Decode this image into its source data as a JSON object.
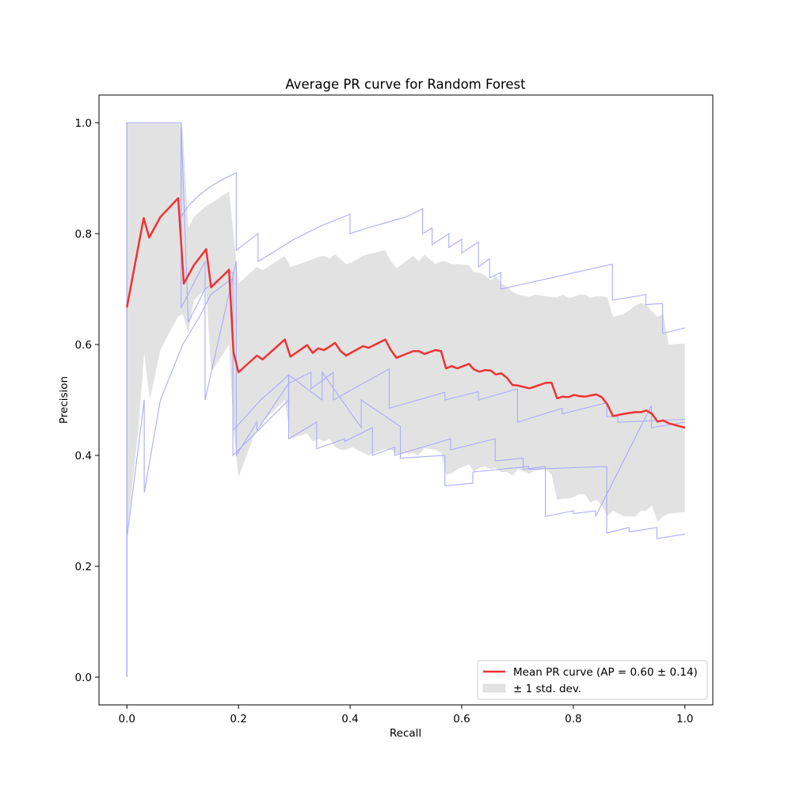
{
  "chart_data": {
    "type": "line",
    "title": "Average PR curve for Random Forest",
    "xlabel": "Recall",
    "ylabel": "Precision",
    "xlim": [
      -0.05,
      1.05
    ],
    "ylim": [
      -0.05,
      1.05
    ],
    "xticks": [
      0.0,
      0.2,
      0.4,
      0.6,
      0.8,
      1.0
    ],
    "xtick_labels": [
      "0.0",
      "0.2",
      "0.4",
      "0.6",
      "0.8",
      "1.0"
    ],
    "yticks": [
      0.0,
      0.2,
      0.4,
      0.6,
      0.8,
      1.0
    ],
    "ytick_labels": [
      "0.0",
      "0.2",
      "0.4",
      "0.6",
      "0.8",
      "1.0"
    ],
    "grid": false,
    "legend_position": "lower-right",
    "legend": {
      "mean_label": "Mean PR curve (AP = 0.60 ± 0.14)",
      "band_label": "± 1 std. dev."
    },
    "colors": {
      "mean": "#f03232",
      "folds": "#aaaaff",
      "band": "#e2e2e2"
    },
    "mean_curve": {
      "x": [
        0.0,
        0.03,
        0.04,
        0.06,
        0.075,
        0.092,
        0.102,
        0.12,
        0.142,
        0.151,
        0.183,
        0.191,
        0.2,
        0.233,
        0.243,
        0.283,
        0.293,
        0.323,
        0.333,
        0.343,
        0.353,
        0.363,
        0.373,
        0.383,
        0.393,
        0.403,
        0.423,
        0.433,
        0.463,
        0.473,
        0.483,
        0.513,
        0.523,
        0.533,
        0.553,
        0.563,
        0.572,
        0.582,
        0.592,
        0.613,
        0.622,
        0.632,
        0.642,
        0.652,
        0.661,
        0.671,
        0.681,
        0.691,
        0.701,
        0.721,
        0.731,
        0.751,
        0.761,
        0.771,
        0.781,
        0.791,
        0.801,
        0.811,
        0.821,
        0.831,
        0.841,
        0.851,
        0.861,
        0.871,
        0.891,
        0.911,
        0.921,
        0.931,
        0.941,
        0.951,
        0.961,
        0.971,
        1.0
      ],
      "y": [
        0.667,
        0.828,
        0.793,
        0.83,
        0.846,
        0.864,
        0.71,
        0.743,
        0.772,
        0.703,
        0.735,
        0.586,
        0.55,
        0.58,
        0.573,
        0.609,
        0.578,
        0.599,
        0.585,
        0.593,
        0.59,
        0.596,
        0.603,
        0.588,
        0.58,
        0.586,
        0.597,
        0.594,
        0.609,
        0.59,
        0.576,
        0.588,
        0.588,
        0.583,
        0.59,
        0.588,
        0.557,
        0.561,
        0.557,
        0.565,
        0.555,
        0.551,
        0.554,
        0.553,
        0.546,
        0.548,
        0.54,
        0.527,
        0.526,
        0.521,
        0.524,
        0.531,
        0.531,
        0.503,
        0.506,
        0.505,
        0.509,
        0.507,
        0.506,
        0.508,
        0.51,
        0.505,
        0.492,
        0.471,
        0.475,
        0.478,
        0.478,
        0.481,
        0.475,
        0.461,
        0.463,
        0.458,
        0.45
      ]
    },
    "std_band": {
      "x": [
        0.0,
        0.0,
        0.01,
        0.021,
        0.031,
        0.041,
        0.06,
        0.075,
        0.092,
        0.1,
        0.11,
        0.12,
        0.142,
        0.151,
        0.183,
        0.191,
        0.2,
        0.233,
        0.243,
        0.283,
        0.293,
        0.323,
        0.333,
        0.343,
        0.353,
        0.363,
        0.373,
        0.383,
        0.393,
        0.403,
        0.423,
        0.433,
        0.463,
        0.473,
        0.483,
        0.513,
        0.523,
        0.533,
        0.553,
        0.563,
        0.572,
        0.582,
        0.592,
        0.613,
        0.622,
        0.632,
        0.642,
        0.652,
        0.661,
        0.671,
        0.681,
        0.691,
        0.701,
        0.721,
        0.731,
        0.751,
        0.761,
        0.771,
        0.781,
        0.791,
        0.801,
        0.811,
        0.821,
        0.831,
        0.841,
        0.851,
        0.861,
        0.871,
        0.891,
        0.911,
        0.921,
        0.931,
        0.941,
        0.951,
        0.961,
        0.971,
        1.0
      ],
      "upper": [
        1.0,
        1.0,
        1.0,
        1.0,
        1.0,
        1.0,
        1.0,
        1.0,
        1.0,
        0.99,
        0.81,
        0.83,
        0.85,
        0.855,
        0.876,
        0.8,
        0.71,
        0.74,
        0.734,
        0.76,
        0.74,
        0.75,
        0.754,
        0.758,
        0.76,
        0.755,
        0.763,
        0.754,
        0.745,
        0.748,
        0.76,
        0.763,
        0.77,
        0.75,
        0.738,
        0.76,
        0.75,
        0.762,
        0.745,
        0.75,
        0.75,
        0.745,
        0.745,
        0.743,
        0.73,
        0.73,
        0.725,
        0.715,
        0.725,
        0.71,
        0.705,
        0.695,
        0.69,
        0.686,
        0.69,
        0.687,
        0.686,
        0.685,
        0.69,
        0.684,
        0.686,
        0.69,
        0.69,
        0.684,
        0.687,
        0.687,
        0.685,
        0.65,
        0.655,
        0.67,
        0.675,
        0.672,
        0.66,
        0.65,
        0.655,
        0.6,
        0.602
      ],
      "lower": [
        0.2,
        0.25,
        0.35,
        0.45,
        0.585,
        0.5,
        0.59,
        0.62,
        0.65,
        0.655,
        0.62,
        0.68,
        0.7,
        0.55,
        0.6,
        0.45,
        0.36,
        0.45,
        0.46,
        0.5,
        0.43,
        0.44,
        0.425,
        0.43,
        0.425,
        0.43,
        0.415,
        0.41,
        0.41,
        0.415,
        0.405,
        0.4,
        0.412,
        0.41,
        0.403,
        0.404,
        0.4,
        0.413,
        0.41,
        0.405,
        0.365,
        0.368,
        0.375,
        0.384,
        0.37,
        0.378,
        0.38,
        0.375,
        0.377,
        0.37,
        0.37,
        0.364,
        0.375,
        0.367,
        0.372,
        0.376,
        0.365,
        0.32,
        0.322,
        0.322,
        0.325,
        0.33,
        0.33,
        0.315,
        0.32,
        0.31,
        0.29,
        0.3,
        0.29,
        0.29,
        0.3,
        0.3,
        0.31,
        0.28,
        0.29,
        0.295,
        0.298
      ]
    },
    "folds": [
      {
        "x": [
          0.0,
          0.0,
          0.097,
          0.097,
          0.11,
          0.13,
          0.15,
          0.17,
          0.196,
          0.196,
          0.235,
          0.235,
          0.26,
          0.3,
          0.35,
          0.4,
          0.4,
          0.43,
          0.5,
          0.53,
          0.53,
          0.547,
          0.547,
          0.577,
          0.577,
          0.6,
          0.6,
          0.63,
          0.63,
          0.65,
          0.65,
          0.67,
          0.67,
          0.87,
          0.87,
          0.93,
          0.93,
          0.96,
          0.96,
          1.0
        ],
        "y": [
          0.0,
          1.0,
          1.0,
          0.83,
          0.85,
          0.87,
          0.885,
          0.897,
          0.91,
          0.77,
          0.8,
          0.75,
          0.765,
          0.79,
          0.815,
          0.835,
          0.8,
          0.81,
          0.83,
          0.845,
          0.8,
          0.81,
          0.78,
          0.8,
          0.775,
          0.79,
          0.765,
          0.785,
          0.74,
          0.755,
          0.72,
          0.73,
          0.7,
          0.745,
          0.68,
          0.69,
          0.672,
          0.674,
          0.62,
          0.63
        ]
      },
      {
        "x": [
          0.0,
          0.0,
          0.097,
          0.097,
          0.14,
          0.14,
          0.196,
          0.196,
          0.233,
          0.233,
          0.29,
          0.33,
          0.33,
          0.37,
          0.37,
          0.47,
          0.47,
          0.57,
          0.57,
          0.63,
          0.63,
          0.7,
          0.7,
          0.78,
          0.78,
          0.86,
          0.86,
          0.88,
          0.88,
          1.0
        ],
        "y": [
          1.0,
          1.0,
          1.0,
          0.666,
          0.75,
          0.5,
          0.75,
          0.4,
          0.46,
          0.445,
          0.53,
          0.55,
          0.52,
          0.55,
          0.5,
          0.556,
          0.485,
          0.514,
          0.5,
          0.515,
          0.5,
          0.52,
          0.46,
          0.485,
          0.475,
          0.495,
          0.47,
          0.47,
          0.46,
          0.465
        ]
      },
      {
        "x": [
          0.0,
          0.0,
          0.097,
          0.11,
          0.14,
          0.18,
          0.19,
          0.19,
          0.24,
          0.29,
          0.29,
          0.34,
          0.34,
          0.39,
          0.39,
          0.44,
          0.44,
          0.48,
          0.48,
          0.58,
          0.58,
          0.66,
          0.66,
          0.71,
          0.71,
          0.75,
          0.75,
          0.8,
          0.8,
          0.84,
          0.84,
          0.94,
          0.94,
          1.0
        ],
        "y": [
          0.0,
          1.0,
          1.0,
          0.64,
          0.7,
          0.73,
          0.73,
          0.445,
          0.5,
          0.545,
          0.43,
          0.46,
          0.412,
          0.43,
          0.425,
          0.45,
          0.4,
          0.415,
          0.4,
          0.43,
          0.41,
          0.43,
          0.39,
          0.395,
          0.375,
          0.38,
          0.29,
          0.3,
          0.295,
          0.3,
          0.29,
          0.49,
          0.45,
          0.46
        ]
      },
      {
        "x": [
          0.0,
          0.0,
          0.031,
          0.031,
          0.06,
          0.1,
          0.13,
          0.15,
          0.19,
          0.19,
          0.24,
          0.29,
          0.29,
          0.35,
          0.35,
          0.42,
          0.42,
          0.49,
          0.49,
          0.57,
          0.57,
          0.62,
          0.62,
          0.72,
          0.72,
          0.86,
          0.86,
          0.9,
          0.9,
          0.95,
          0.95,
          1.0
        ],
        "y": [
          0.0,
          0.25,
          0.5,
          0.333,
          0.5,
          0.6,
          0.65,
          0.69,
          0.72,
          0.4,
          0.45,
          0.5,
          0.545,
          0.5,
          0.55,
          0.45,
          0.5,
          0.452,
          0.395,
          0.4,
          0.345,
          0.35,
          0.37,
          0.38,
          0.375,
          0.38,
          0.26,
          0.27,
          0.262,
          0.27,
          0.25,
          0.258
        ]
      }
    ]
  }
}
